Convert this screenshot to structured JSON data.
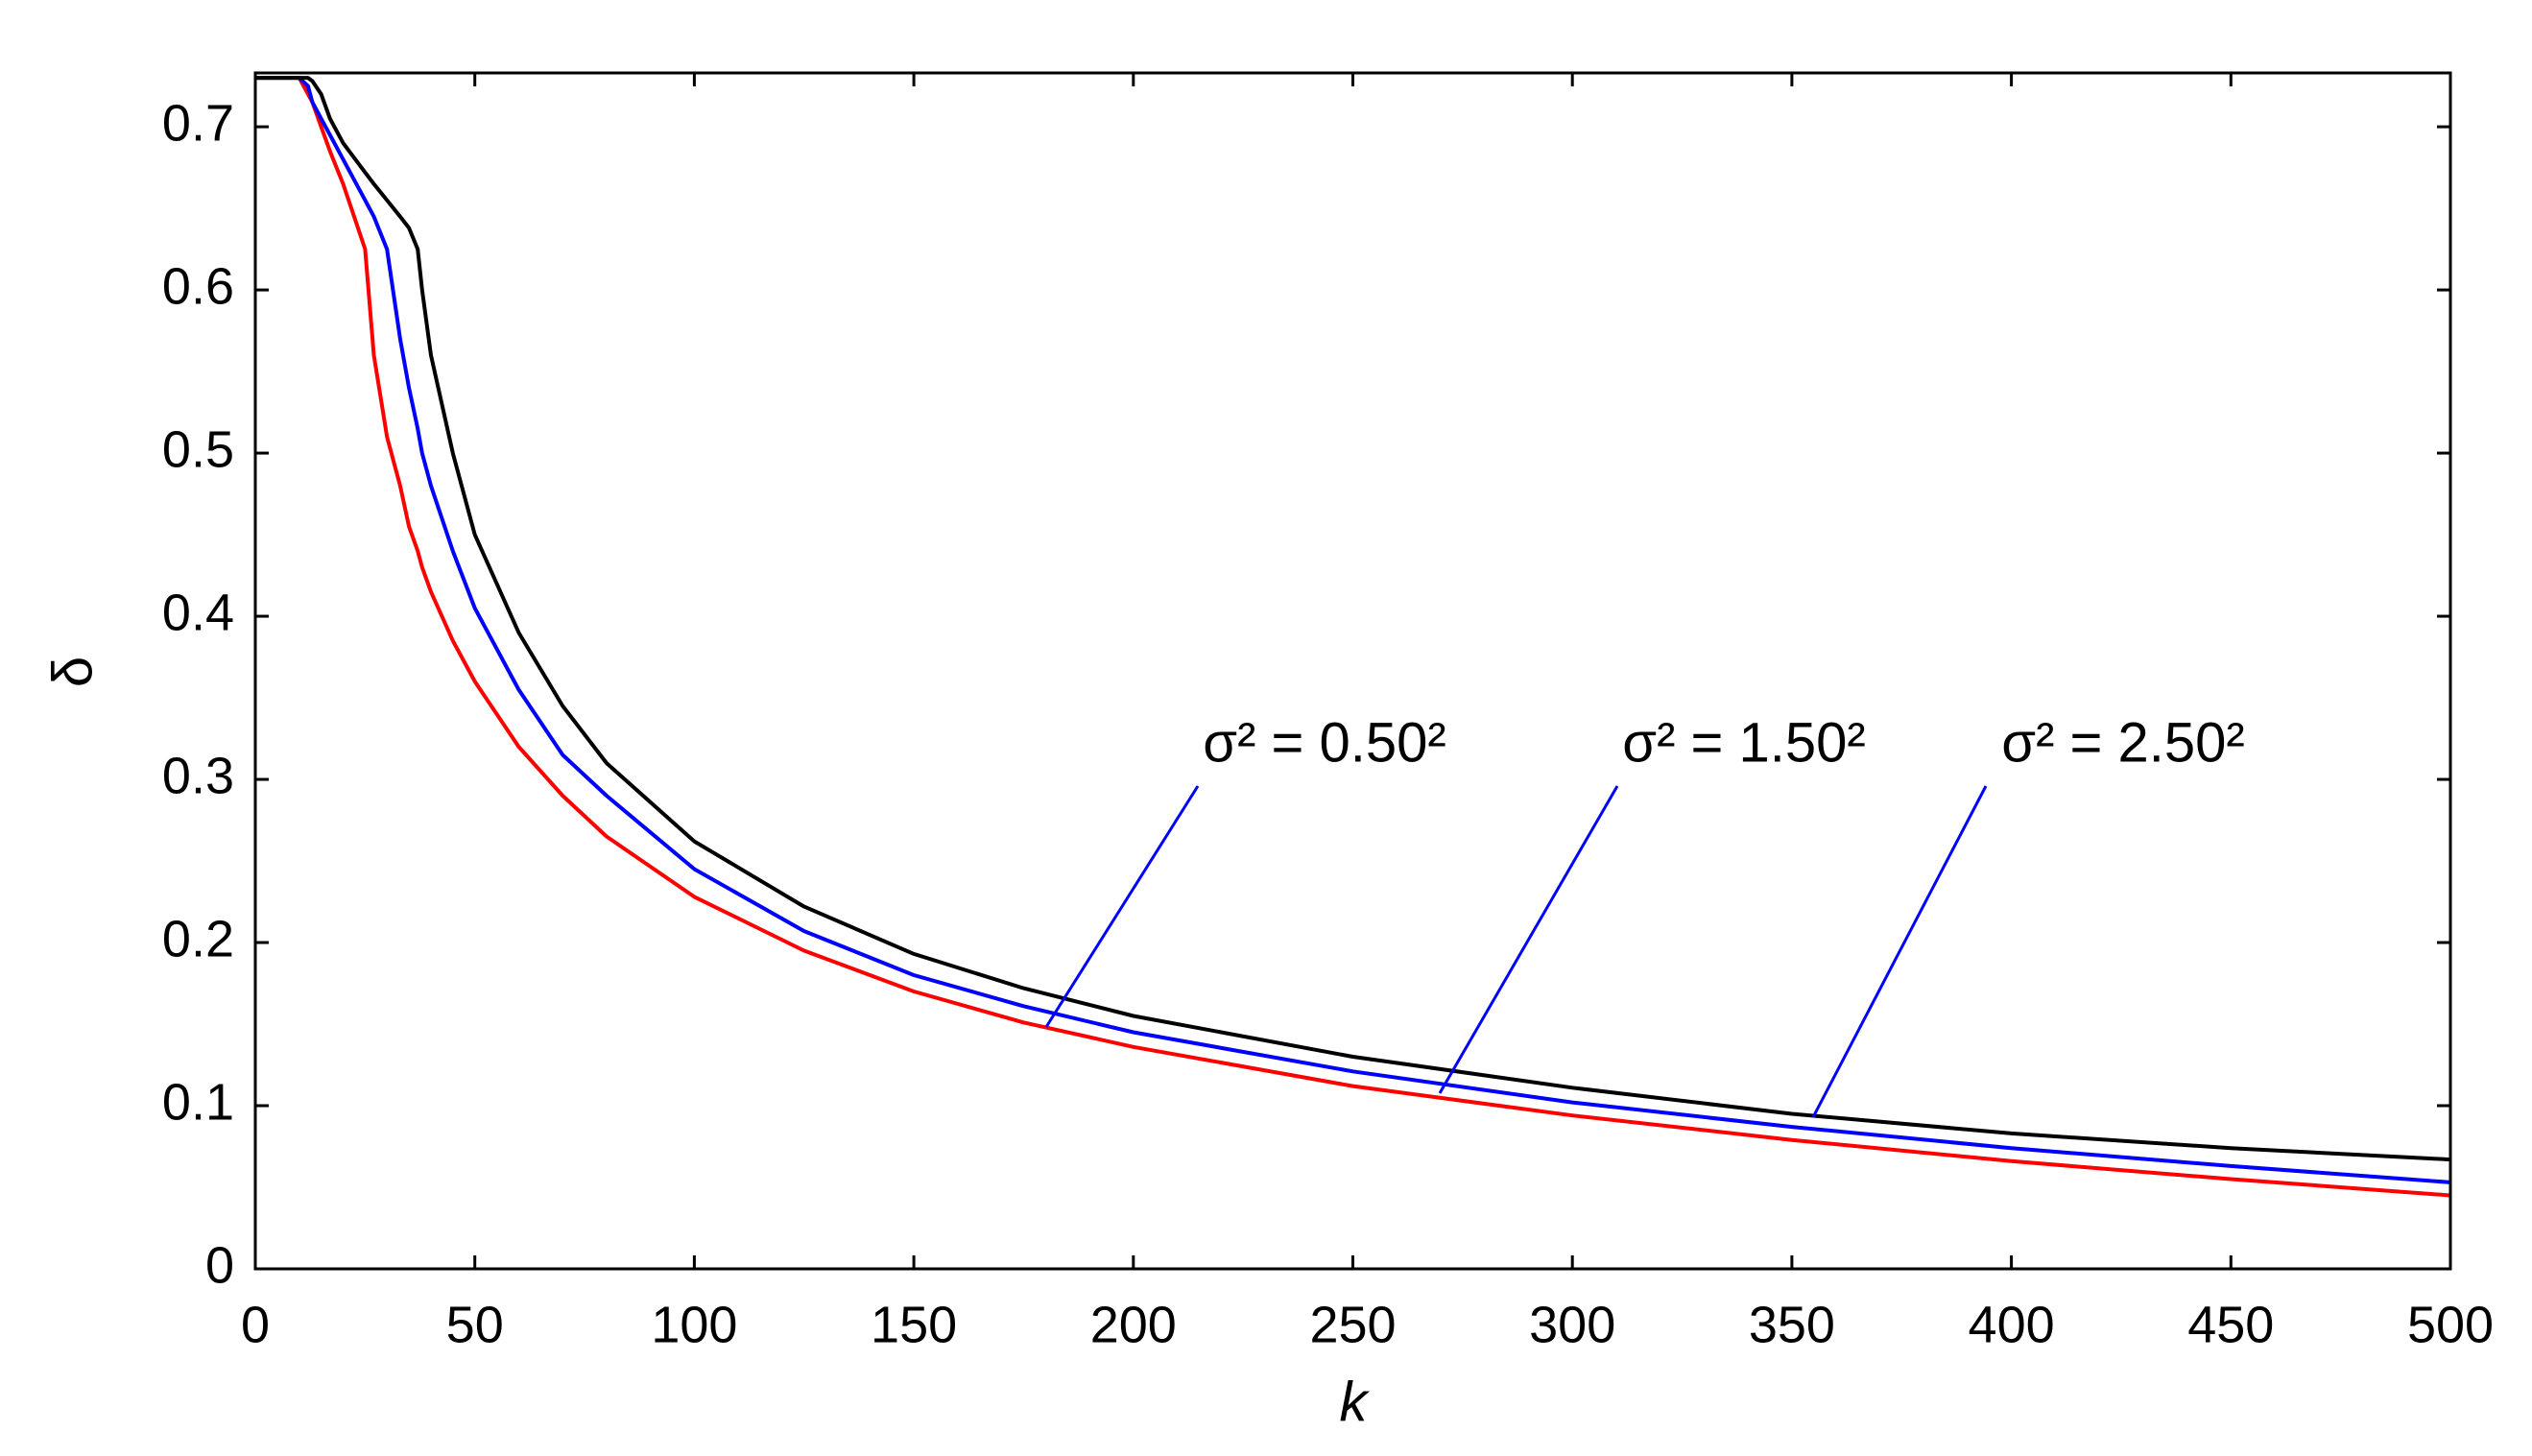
{
  "chart_data": {
    "type": "line",
    "xlabel": "k",
    "ylabel": "δ",
    "x": [
      0,
      10,
      12,
      13,
      15,
      17,
      20,
      25,
      27,
      30,
      33,
      35,
      37,
      38,
      40,
      45,
      50,
      60,
      70,
      80,
      100,
      125,
      150,
      175,
      200,
      250,
      300,
      350,
      400,
      450,
      500
    ],
    "series": [
      {
        "name": "σ² = 0.50²",
        "color": "#ff0000",
        "values": [
          0.73,
          0.73,
          0.72,
          0.715,
          0.7,
          0.685,
          0.665,
          0.625,
          0.56,
          0.51,
          0.48,
          0.455,
          0.44,
          0.43,
          0.415,
          0.385,
          0.36,
          0.32,
          0.29,
          0.265,
          0.228,
          0.195,
          0.17,
          0.151,
          0.136,
          0.112,
          0.094,
          0.079,
          0.066,
          0.055,
          0.045
        ]
      },
      {
        "name": "σ² = 1.50²",
        "color": "#0000ff",
        "values": [
          0.73,
          0.73,
          0.725,
          0.715,
          0.705,
          0.695,
          0.68,
          0.655,
          0.645,
          0.625,
          0.57,
          0.54,
          0.515,
          0.5,
          0.48,
          0.44,
          0.405,
          0.355,
          0.315,
          0.29,
          0.245,
          0.207,
          0.18,
          0.161,
          0.145,
          0.121,
          0.102,
          0.087,
          0.074,
          0.063,
          0.053
        ]
      },
      {
        "name": "σ² = 2.50²",
        "color": "#000000",
        "values": [
          0.73,
          0.73,
          0.73,
          0.728,
          0.72,
          0.705,
          0.69,
          0.672,
          0.665,
          0.655,
          0.645,
          0.638,
          0.625,
          0.6,
          0.56,
          0.5,
          0.45,
          0.39,
          0.345,
          0.31,
          0.262,
          0.222,
          0.193,
          0.172,
          0.155,
          0.13,
          0.111,
          0.095,
          0.083,
          0.074,
          0.067
        ]
      }
    ],
    "xlim": [
      0,
      500
    ],
    "xticks": [
      0,
      50,
      100,
      150,
      200,
      250,
      300,
      350,
      400,
      450,
      500
    ],
    "ylim": [
      0,
      0.733
    ],
    "yticks": [
      0,
      0.1,
      0.2,
      0.3,
      0.4,
      0.5,
      0.6,
      0.7
    ],
    "annotation_color": "#0000ff"
  }
}
